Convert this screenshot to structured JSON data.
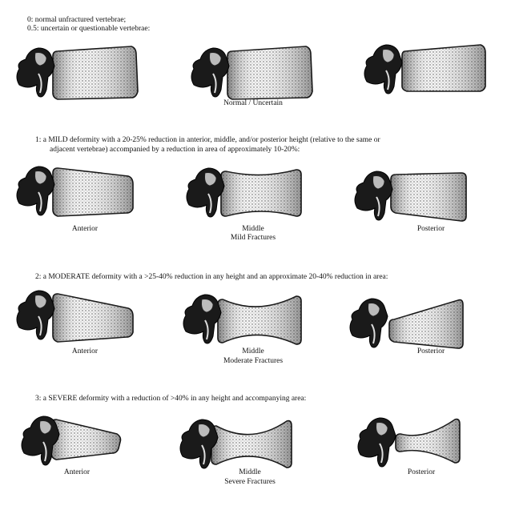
{
  "grades": [
    {
      "id": "g0",
      "lines": [
        "0:   normal unfractured vertebrae;",
        "0.5: uncertain or questionable vertebrae:"
      ],
      "captions": [
        "",
        "Normal / Uncertain",
        ""
      ],
      "subcaption": ""
    },
    {
      "id": "g1",
      "lines": [
        "1:   a MILD deformity with a 20-25% reduction in anterior, middle, and/or posterior height (relative to the same or",
        "adjacent vertebrae) accompanied by a reduction in area of approximately 10-20%:"
      ],
      "captions": [
        "Anterior",
        "Middle",
        "Posterior"
      ],
      "subcaption": "Mild Fractures"
    },
    {
      "id": "g2",
      "lines": [
        "2:   a MODERATE deformity with a >25-40% reduction in any height and an approximate 20-40% reduction in area:"
      ],
      "captions": [
        "Anterior",
        "Middle",
        "Posterior"
      ],
      "subcaption": "Moderate Fractures"
    },
    {
      "id": "g3",
      "lines": [
        "3:   a SEVERE deformity with a reduction of >40% in any height and accompanying area:"
      ],
      "captions": [
        "Anterior",
        "Middle",
        "Posterior"
      ],
      "subcaption": "Severe Fractures"
    }
  ]
}
